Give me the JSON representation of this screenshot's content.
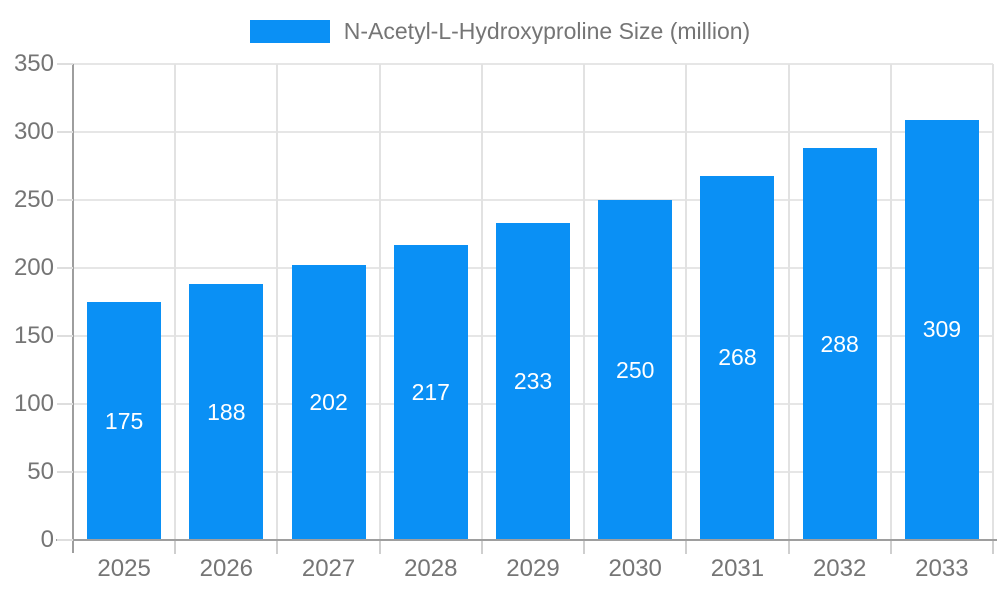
{
  "chart_data": {
    "type": "bar",
    "title": "N-Acetyl-L-Hydroxyproline Size (million)",
    "series_name": "N-Acetyl-L-Hydroxyproline Size (million)",
    "categories": [
      "2025",
      "2026",
      "2027",
      "2028",
      "2029",
      "2030",
      "2031",
      "2032",
      "2033"
    ],
    "values": [
      175,
      188,
      202,
      217,
      233,
      250,
      268,
      288,
      309
    ],
    "xlabel": "",
    "ylabel": "",
    "ylim": [
      0,
      350
    ],
    "y_ticks": [
      0,
      50,
      100,
      150,
      200,
      250,
      300,
      350
    ],
    "grid": true,
    "legend_position": "top-center",
    "bar_color": "#0a90f5",
    "value_label_color": "#ffffff",
    "axis_text_color": "#757575",
    "gridline_color": "#e6e6e6",
    "axis_line_color": "#9e9e9e"
  }
}
